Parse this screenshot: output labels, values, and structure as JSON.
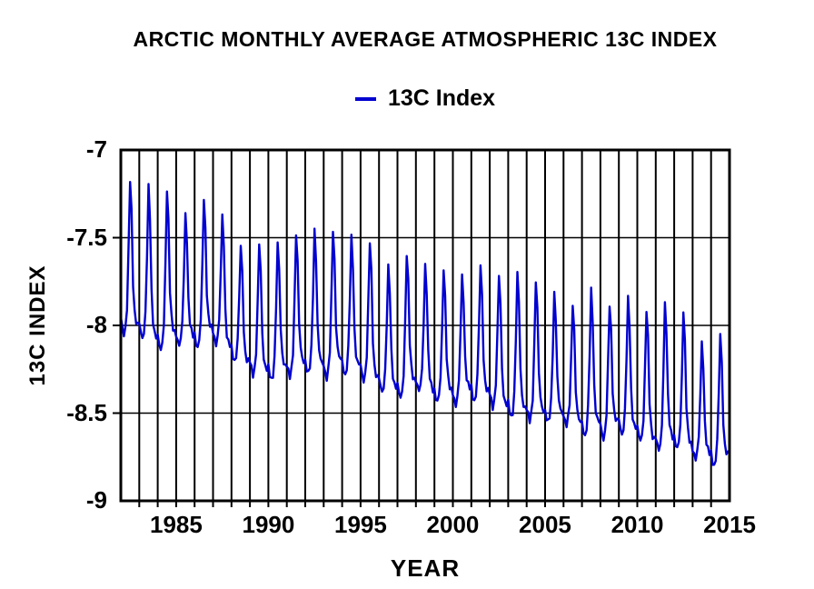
{
  "page": {
    "background": "#ffffff",
    "text_color": "#000000"
  },
  "chart_data": {
    "type": "line",
    "title": "ARCTIC MONTHLY AVERAGE ATMOSPHERIC 13C INDEX",
    "xlabel": "YEAR",
    "ylabel": "13C INDEX",
    "legend": {
      "position": "top-center",
      "entries": [
        {
          "label": "13C Index",
          "color": "#0000d0"
        }
      ]
    },
    "xlim": [
      1982,
      2015
    ],
    "ylim": [
      -9,
      -7
    ],
    "x_tick_values": [
      1985,
      1990,
      1995,
      2000,
      2005,
      2010,
      2015
    ],
    "x_tick_labels": [
      "1985",
      "1990",
      "1995",
      "2000",
      "2005",
      "2010",
      "2015"
    ],
    "y_tick_values": [
      -7,
      -7.5,
      -8,
      -8.5,
      -9
    ],
    "y_tick_labels": [
      "-7",
      "-7.5",
      "-8",
      "-8.5",
      "-9"
    ],
    "grid": {
      "vertical_every_years": 1,
      "horizontal_at": [
        -7.5,
        -8,
        -8.5
      ],
      "color": "#000000",
      "frame_color": "#000000"
    },
    "series": [
      {
        "name": "13C Index",
        "color": "#0000d0",
        "cadence": "monthly",
        "years": [
          1982,
          1983,
          1984,
          1985,
          1986,
          1987,
          1988,
          1989,
          1990,
          1991,
          1992,
          1993,
          1994,
          1995,
          1996,
          1997,
          1998,
          1999,
          2000,
          2001,
          2002,
          2003,
          2004,
          2005,
          2006,
          2007,
          2008,
          2009,
          2010,
          2011,
          2012,
          2013,
          2014
        ],
        "annual_peaks": [
          -7.18,
          -7.2,
          -7.23,
          -7.36,
          -7.28,
          -7.37,
          -7.55,
          -7.54,
          -7.53,
          -7.48,
          -7.45,
          -7.46,
          -7.49,
          -7.53,
          -7.66,
          -7.6,
          -7.65,
          -7.68,
          -7.71,
          -7.66,
          -7.72,
          -7.7,
          -7.75,
          -7.81,
          -7.88,
          -7.79,
          -7.89,
          -7.84,
          -7.92,
          -7.87,
          -7.92,
          -8.09,
          -8.05
        ],
        "annual_troughs": [
          -8.05,
          -8.08,
          -8.15,
          -8.12,
          -8.13,
          -8.1,
          -8.2,
          -8.28,
          -8.32,
          -8.3,
          -8.28,
          -8.3,
          -8.28,
          -8.31,
          -8.38,
          -8.42,
          -8.38,
          -8.44,
          -8.45,
          -8.43,
          -8.46,
          -8.53,
          -8.55,
          -8.56,
          -8.57,
          -8.63,
          -8.64,
          -8.62,
          -8.66,
          -8.72,
          -8.71,
          -8.76,
          -8.8
        ],
        "end_trough_2015": -8.82,
        "monthly_shape": [
          0.1,
          0.04,
          0.0,
          0.05,
          0.18,
          0.55,
          1.0,
          0.8,
          0.35,
          0.18,
          0.12,
          0.1
        ],
        "peak_month": "Jul",
        "trough_month": "Mar"
      }
    ]
  }
}
